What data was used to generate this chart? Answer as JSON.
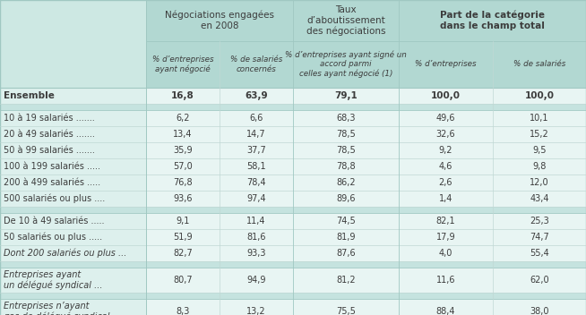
{
  "header_group1": "Négociations engagées\nen 2008",
  "header_group2": "Taux\nd’aboutissement\ndes négociations",
  "header_group3": "Part de la catégorie\ndans le champ total",
  "col_headers": [
    "% d’entreprises\nayant négocié",
    "% de salariés\nconcernés",
    "% d’entreprises ayant signé un\naccord parmi\ncelles ayant négocié (1)",
    "% d’entreprises",
    "% de salariés"
  ],
  "rows": [
    {
      "label": "Ensemble",
      "bold": true,
      "italic": false,
      "multiline": false,
      "dots": "",
      "values": [
        "16,8",
        "63,9",
        "79,1",
        "100,0",
        "100,0"
      ],
      "separator_after": true
    },
    {
      "label": "10 à 19 salariés",
      "bold": false,
      "italic": false,
      "multiline": false,
      "dots": ".......",
      "values": [
        "6,2",
        "6,6",
        "68,3",
        "49,6",
        "10,1"
      ],
      "separator_after": false
    },
    {
      "label": "20 à 49 salariés",
      "bold": false,
      "italic": false,
      "multiline": false,
      "dots": ".......",
      "values": [
        "13,4",
        "14,7",
        "78,5",
        "32,6",
        "15,2"
      ],
      "separator_after": false
    },
    {
      "label": "50 à 99 salariés",
      "bold": false,
      "italic": false,
      "multiline": false,
      "dots": ".......",
      "values": [
        "35,9",
        "37,7",
        "78,5",
        "9,2",
        "9,5"
      ],
      "separator_after": false
    },
    {
      "label": "100 à 199 salariés",
      "bold": false,
      "italic": false,
      "multiline": false,
      "dots": ".....",
      "values": [
        "57,0",
        "58,1",
        "78,8",
        "4,6",
        "9,8"
      ],
      "separator_after": false
    },
    {
      "label": "200 à 499 salariés",
      "bold": false,
      "italic": false,
      "multiline": false,
      "dots": ".....",
      "values": [
        "76,8",
        "78,4",
        "86,2",
        "2,6",
        "12,0"
      ],
      "separator_after": false
    },
    {
      "label": "500 salariés ou plus",
      "bold": false,
      "italic": false,
      "multiline": false,
      "dots": "....",
      "values": [
        "93,6",
        "97,4",
        "89,6",
        "1,4",
        "43,4"
      ],
      "separator_after": true
    },
    {
      "label": "De 10 à 49 salariés",
      "bold": false,
      "italic": false,
      "multiline": false,
      "dots": ".....",
      "values": [
        "9,1",
        "11,4",
        "74,5",
        "82,1",
        "25,3"
      ],
      "separator_after": false
    },
    {
      "label": "50 salariés ou plus",
      "bold": false,
      "italic": false,
      "multiline": false,
      "dots": ".....",
      "values": [
        "51,9",
        "81,6",
        "81,9",
        "17,9",
        "74,7"
      ],
      "separator_after": false
    },
    {
      "label": "Dont 200 salariés ou plus",
      "bold": false,
      "italic": true,
      "multiline": false,
      "dots": "...",
      "values": [
        "82,7",
        "93,3",
        "87,6",
        "4,0",
        "55,4"
      ],
      "separator_after": true
    },
    {
      "label": "Entreprises ayant\nun délégué syndical",
      "bold": false,
      "italic": true,
      "multiline": true,
      "dots": "...",
      "values": [
        "80,7",
        "94,9",
        "81,2",
        "11,6",
        "62,0"
      ],
      "separator_after": true
    },
    {
      "label": "Entreprises n’ayant\npas de délégué syndical",
      "bold": false,
      "italic": true,
      "multiline": true,
      "dots": "...",
      "values": [
        "8,3",
        "13,2",
        "75,5",
        "88,4",
        "38,0"
      ],
      "separator_after": false
    }
  ],
  "bg_color": "#cde8e3",
  "header_bg": "#b2d8d2",
  "cell_bg": "#e8f5f3",
  "label_bg": "#ddf0ed",
  "sep_bg": "#c5e3df",
  "text_color": "#3c3c3c",
  "teal_text": "#3a7a6a",
  "border_color": "#a0c8c2",
  "inner_line_color": "#c0d8d4"
}
